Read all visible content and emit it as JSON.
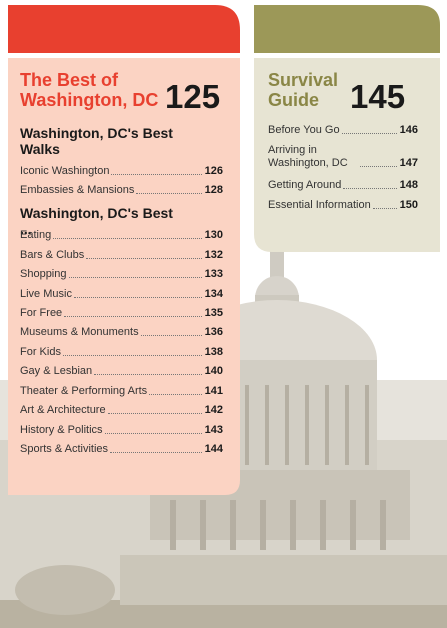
{
  "left": {
    "title": "The Best of Washington, DC",
    "page": 125,
    "sections": [
      {
        "heading": "Washington, DC's Best Walks",
        "entries": [
          {
            "label": "Iconic Washington",
            "page": 126
          },
          {
            "label": "Embassies & Mansions",
            "page": 128
          }
        ]
      },
      {
        "heading": "Washington, DC's Best ...",
        "entries": [
          {
            "label": "Eating",
            "page": 130
          },
          {
            "label": "Bars & Clubs",
            "page": 132
          },
          {
            "label": "Shopping",
            "page": 133
          },
          {
            "label": "Live Music",
            "page": 134
          },
          {
            "label": "For Free",
            "page": 135
          },
          {
            "label": "Museums & Monuments",
            "page": 136
          },
          {
            "label": "For Kids",
            "page": 138
          },
          {
            "label": "Gay & Lesbian",
            "page": 140
          },
          {
            "label": "Theater & Performing Arts",
            "page": 141
          },
          {
            "label": "Art & Architecture",
            "page": 142
          },
          {
            "label": "History & Politics",
            "page": 143
          },
          {
            "label": "Sports & Activities",
            "page": 144
          }
        ]
      }
    ]
  },
  "right": {
    "title": "Survival Guide",
    "page": 145,
    "entries": [
      {
        "label": "Before You Go",
        "page": 146
      },
      {
        "label": "Arriving in Washington, DC",
        "page": 147
      },
      {
        "label": "Getting Around",
        "page": 148
      },
      {
        "label": "Essential Information",
        "page": 150
      }
    ]
  }
}
